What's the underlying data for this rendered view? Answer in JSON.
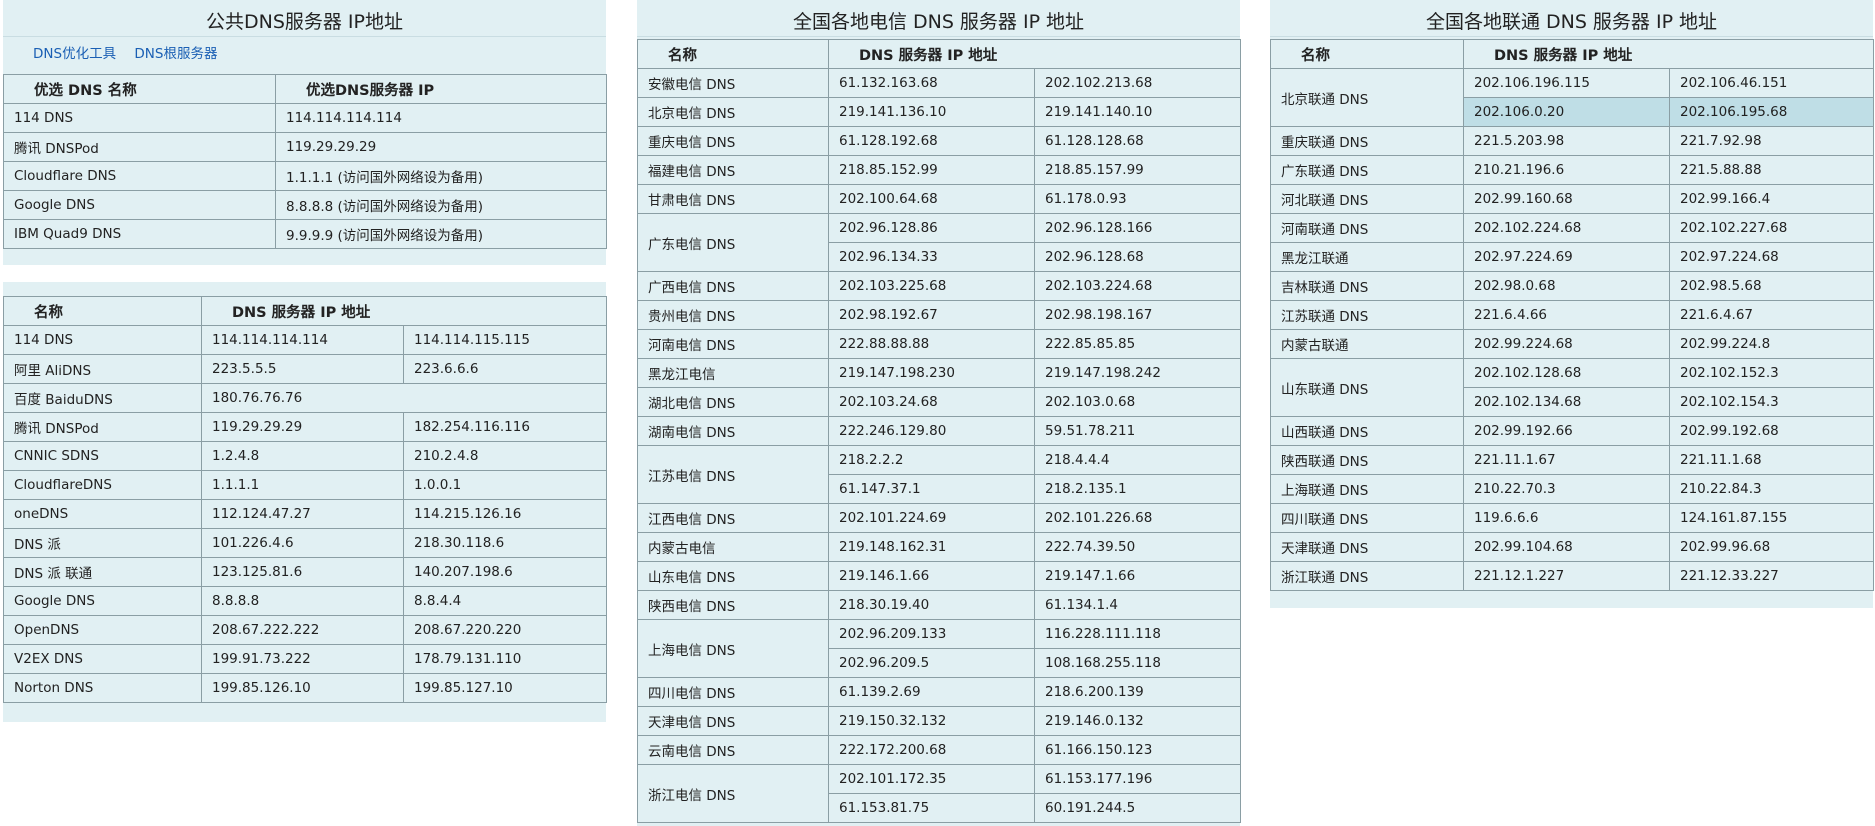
{
  "public_dns": {
    "title": "公共DNS服务器 IP地址",
    "links": [
      "DNS优化工具",
      "DNS根服务器"
    ],
    "header": [
      "优选 DNS 名称",
      "优选DNS服务器 IP"
    ],
    "rows": [
      [
        "114 DNS",
        "114.114.114.114"
      ],
      [
        "腾讯 DNSPod",
        "119.29.29.29"
      ],
      [
        "Cloudflare DNS",
        "1.1.1.1 (访问国外网络设为备用)"
      ],
      [
        "Google DNS",
        "8.8.8.8 (访问国外网络设为备用)"
      ],
      [
        "IBM Quad9 DNS",
        "9.9.9.9 (访问国外网络设为备用)"
      ]
    ]
  },
  "dns_list": {
    "header": [
      "名称",
      "DNS 服务器 IP 地址"
    ],
    "rows": [
      [
        "114 DNS",
        "114.114.114.114",
        "114.114.115.115"
      ],
      [
        "阿里 AliDNS",
        "223.5.5.5",
        "223.6.6.6"
      ],
      [
        "百度 BaiduDNS",
        "180.76.76.76"
      ],
      [
        "腾讯 DNSPod",
        "119.29.29.29",
        "182.254.116.116"
      ],
      [
        "CNNIC SDNS",
        "1.2.4.8",
        "210.2.4.8"
      ],
      [
        "CloudflareDNS",
        "1.1.1.1",
        "1.0.0.1"
      ],
      [
        "oneDNS",
        "112.124.47.27",
        "114.215.126.16"
      ],
      [
        "DNS 派",
        "101.226.4.6",
        "218.30.118.6"
      ],
      [
        "DNS 派 联通",
        "123.125.81.6",
        "140.207.198.6"
      ],
      [
        "Google DNS",
        "8.8.8.8",
        "8.8.4.4"
      ],
      [
        "OpenDNS",
        "208.67.222.222",
        "208.67.220.220"
      ],
      [
        "V2EX DNS",
        "199.91.73.222",
        "178.79.131.110"
      ],
      [
        "Norton DNS",
        "199.85.126.10",
        "199.85.127.10"
      ]
    ]
  },
  "telecom": {
    "title": "全国各地电信 DNS 服务器 IP 地址",
    "header": [
      "名称",
      "DNS 服务器 IP 地址"
    ],
    "rows": [
      {
        "name": "安徽电信 DNS",
        "ips": [
          [
            "61.132.163.68",
            "202.102.213.68"
          ]
        ]
      },
      {
        "name": "北京电信 DNS",
        "ips": [
          [
            "219.141.136.10",
            "219.141.140.10"
          ]
        ]
      },
      {
        "name": "重庆电信 DNS",
        "ips": [
          [
            "61.128.192.68",
            "61.128.128.68"
          ]
        ]
      },
      {
        "name": "福建电信 DNS",
        "ips": [
          [
            "218.85.152.99",
            "218.85.157.99"
          ]
        ]
      },
      {
        "name": "甘肃电信 DNS",
        "ips": [
          [
            "202.100.64.68",
            "61.178.0.93"
          ]
        ]
      },
      {
        "name": "广东电信 DNS",
        "ips": [
          [
            "202.96.128.86",
            "202.96.128.166"
          ],
          [
            "202.96.134.33",
            "202.96.128.68"
          ]
        ]
      },
      {
        "name": "广西电信 DNS",
        "ips": [
          [
            "202.103.225.68",
            "202.103.224.68"
          ]
        ]
      },
      {
        "name": "贵州电信 DNS",
        "ips": [
          [
            "202.98.192.67",
            "202.98.198.167"
          ]
        ]
      },
      {
        "name": "河南电信 DNS",
        "ips": [
          [
            "222.88.88.88",
            "222.85.85.85"
          ]
        ]
      },
      {
        "name": "黑龙江电信",
        "ips": [
          [
            "219.147.198.230",
            "219.147.198.242"
          ]
        ]
      },
      {
        "name": "湖北电信 DNS",
        "ips": [
          [
            "202.103.24.68",
            "202.103.0.68"
          ]
        ]
      },
      {
        "name": "湖南电信 DNS",
        "ips": [
          [
            "222.246.129.80",
            "59.51.78.211"
          ]
        ]
      },
      {
        "name": "江苏电信 DNS",
        "ips": [
          [
            "218.2.2.2",
            "218.4.4.4"
          ],
          [
            "61.147.37.1",
            "218.2.135.1"
          ]
        ]
      },
      {
        "name": "江西电信 DNS",
        "ips": [
          [
            "202.101.224.69",
            "202.101.226.68"
          ]
        ]
      },
      {
        "name": "内蒙古电信",
        "ips": [
          [
            "219.148.162.31",
            "222.74.39.50"
          ]
        ]
      },
      {
        "name": "山东电信 DNS",
        "ips": [
          [
            "219.146.1.66",
            "219.147.1.66"
          ]
        ]
      },
      {
        "name": "陕西电信 DNS",
        "ips": [
          [
            "218.30.19.40",
            "61.134.1.4"
          ]
        ]
      },
      {
        "name": "上海电信 DNS",
        "ips": [
          [
            "202.96.209.133",
            "116.228.111.118"
          ],
          [
            "202.96.209.5",
            "108.168.255.118"
          ]
        ]
      },
      {
        "name": "四川电信 DNS",
        "ips": [
          [
            "61.139.2.69",
            "218.6.200.139"
          ]
        ]
      },
      {
        "name": "天津电信 DNS",
        "ips": [
          [
            "219.150.32.132",
            "219.146.0.132"
          ]
        ]
      },
      {
        "name": "云南电信 DNS",
        "ips": [
          [
            "222.172.200.68",
            "61.166.150.123"
          ]
        ]
      },
      {
        "name": "浙江电信 DNS",
        "ips": [
          [
            "202.101.172.35",
            "61.153.177.196"
          ],
          [
            "61.153.81.75",
            "60.191.244.5"
          ]
        ]
      }
    ]
  },
  "unicom": {
    "title": "全国各地联通 DNS 服务器 IP 地址",
    "header": [
      "名称",
      "DNS 服务器 IP 地址"
    ],
    "rows": [
      {
        "name": "北京联通 DNS",
        "ips": [
          [
            "202.106.196.115",
            "202.106.46.151"
          ],
          [
            "202.106.0.20",
            "202.106.195.68"
          ]
        ]
      },
      {
        "name": "重庆联通 DNS",
        "ips": [
          [
            "221.5.203.98",
            "221.7.92.98"
          ]
        ]
      },
      {
        "name": "广东联通 DNS",
        "ips": [
          [
            "210.21.196.6",
            "221.5.88.88"
          ]
        ]
      },
      {
        "name": "河北联通 DNS",
        "ips": [
          [
            "202.99.160.68",
            "202.99.166.4"
          ]
        ]
      },
      {
        "name": "河南联通 DNS",
        "ips": [
          [
            "202.102.224.68",
            "202.102.227.68"
          ]
        ]
      },
      {
        "name": "黑龙江联通",
        "ips": [
          [
            "202.97.224.69",
            "202.97.224.68"
          ]
        ]
      },
      {
        "name": "吉林联通 DNS",
        "ips": [
          [
            "202.98.0.68",
            "202.98.5.68"
          ]
        ]
      },
      {
        "name": "江苏联通 DNS",
        "ips": [
          [
            "221.6.4.66",
            "221.6.4.67"
          ]
        ]
      },
      {
        "name": "内蒙古联通",
        "ips": [
          [
            "202.99.224.68",
            "202.99.224.8"
          ]
        ]
      },
      {
        "name": "山东联通 DNS",
        "ips": [
          [
            "202.102.128.68",
            "202.102.152.3"
          ],
          [
            "202.102.134.68",
            "202.102.154.3"
          ]
        ]
      },
      {
        "name": "山西联通 DNS",
        "ips": [
          [
            "202.99.192.66",
            "202.99.192.68"
          ]
        ]
      },
      {
        "name": "陕西联通 DNS",
        "ips": [
          [
            "221.11.1.67",
            "221.11.1.68"
          ]
        ]
      },
      {
        "name": "上海联通 DNS",
        "ips": [
          [
            "210.22.70.3",
            "210.22.84.3"
          ]
        ]
      },
      {
        "name": "四川联通 DNS",
        "ips": [
          [
            "119.6.6.6",
            "124.161.87.155"
          ]
        ]
      },
      {
        "name": "天津联通 DNS",
        "ips": [
          [
            "202.99.104.68",
            "202.99.96.68"
          ]
        ]
      },
      {
        "name": "浙江联通 DNS",
        "ips": [
          [
            "221.12.1.227",
            "221.12.33.227"
          ]
        ]
      }
    ]
  }
}
